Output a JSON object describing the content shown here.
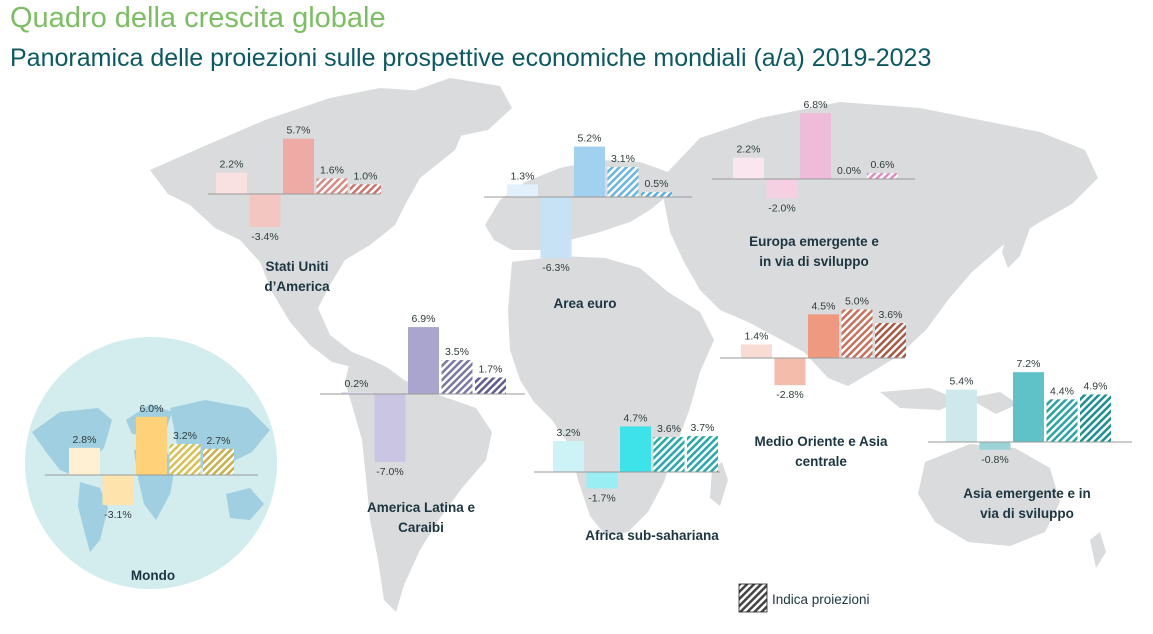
{
  "header": {
    "title": "Quadro della crescita globale",
    "subtitle": "Panoramica delle proiezioni sulle prospettive economiche mondiali (a/a) 2019-2023"
  },
  "legend": {
    "label": "Indica proiezioni"
  },
  "chart_data": {
    "type": "bar",
    "title": "Quadro della crescita globale",
    "subtitle": "Panoramica delle proiezioni sulle prospettive economiche mondiali (a/a) 2019-2023",
    "unit": "%",
    "grid": false,
    "legend_position": "bottom-right",
    "projection_note": "Indica proiezioni",
    "regions": [
      {
        "id": "usa",
        "name": [
          "Stati Uniti",
          "d’America"
        ],
        "values": [
          2.2,
          -3.4,
          5.7,
          1.6,
          1.0
        ],
        "labels": [
          "2.2%",
          "-3.4%",
          "5.7%",
          "1.6%",
          "1.0%"
        ],
        "projected": [
          false,
          false,
          false,
          true,
          true
        ],
        "colors": [
          "#f9e1e1",
          "#f4c6c2",
          "#eeaaa4",
          "#d88b85",
          "#c9746c"
        ]
      },
      {
        "id": "euro",
        "name": [
          "Area euro"
        ],
        "values": [
          1.3,
          -6.3,
          5.2,
          3.1,
          0.5
        ],
        "labels": [
          "1.3%",
          "-6.3%",
          "5.2%",
          "3.1%",
          "0.5%"
        ],
        "projected": [
          false,
          false,
          false,
          true,
          true
        ],
        "colors": [
          "#e1f0fa",
          "#c6e2f4",
          "#a2d0ef",
          "#6ab6e3",
          "#5aaedc"
        ]
      },
      {
        "id": "emerging_europe",
        "name": [
          "Europa emergente e",
          "in via di sviluppo"
        ],
        "values": [
          2.2,
          -2.0,
          6.8,
          0.0,
          0.6
        ],
        "labels": [
          "2.2%",
          "-2.0%",
          "6.8%",
          "0.0%",
          "0.6%"
        ],
        "projected": [
          false,
          false,
          false,
          true,
          true
        ],
        "colors": [
          "#fae6ee",
          "#f5cfe2",
          "#eebbd9",
          "#e08cbf",
          "#e08cbf"
        ]
      },
      {
        "id": "latam",
        "name": [
          "America Latina e",
          "Caraibi"
        ],
        "values": [
          0.2,
          -7.0,
          6.9,
          3.5,
          1.7
        ],
        "labels": [
          "0.2%",
          "-7.0%",
          "6.9%",
          "3.5%",
          "1.7%"
        ],
        "projected": [
          false,
          false,
          false,
          true,
          true
        ],
        "colors": [
          "#e2e0ef",
          "#c9c5e2",
          "#aaa5cf",
          "#7c78a6",
          "#5f5b8c"
        ]
      },
      {
        "id": "ssa",
        "name": [
          "Africa sub-sahariana"
        ],
        "values": [
          3.2,
          -1.7,
          4.7,
          3.6,
          3.7
        ],
        "labels": [
          "3.2%",
          "-1.7%",
          "4.7%",
          "3.6%",
          "3.7%"
        ],
        "projected": [
          false,
          false,
          false,
          true,
          true
        ],
        "colors": [
          "#cdf3f7",
          "#98eef3",
          "#3ee3ea",
          "#26a9a9",
          "#26a9a9"
        ]
      },
      {
        "id": "mena",
        "name": [
          "Medio Oriente e Asia",
          "centrale"
        ],
        "values": [
          1.4,
          -2.8,
          4.5,
          5.0,
          3.6
        ],
        "labels": [
          "1.4%",
          "-2.8%",
          "4.5%",
          "5.0%",
          "3.6%"
        ],
        "projected": [
          false,
          false,
          false,
          true,
          true
        ],
        "colors": [
          "#f8dcd3",
          "#f4bcaa",
          "#ef9a80",
          "#c8725c",
          "#a85a44"
        ]
      },
      {
        "id": "asia",
        "name": [
          "Asia emergente e in",
          "via di sviluppo"
        ],
        "values": [
          5.4,
          -0.8,
          7.2,
          4.4,
          4.9
        ],
        "labels": [
          "5.4%",
          "-0.8%",
          "7.2%",
          "4.4%",
          "4.9%"
        ],
        "projected": [
          false,
          false,
          false,
          true,
          true
        ],
        "colors": [
          "#cfe8eb",
          "#9bd3d7",
          "#5fc2c8",
          "#2aa3a3",
          "#1c9090"
        ]
      },
      {
        "id": "world",
        "name": [
          "Mondo"
        ],
        "values": [
          2.8,
          -3.1,
          6.0,
          3.2,
          2.7
        ],
        "labels": [
          "2.8%",
          "-3.1%",
          "6.0%",
          "3.2%",
          "2.7%"
        ],
        "projected": [
          false,
          false,
          false,
          true,
          true
        ],
        "colors": [
          "#fff0d3",
          "#ffe3ad",
          "#ffd27a",
          "#d9c052",
          "#c9b048"
        ]
      }
    ]
  }
}
